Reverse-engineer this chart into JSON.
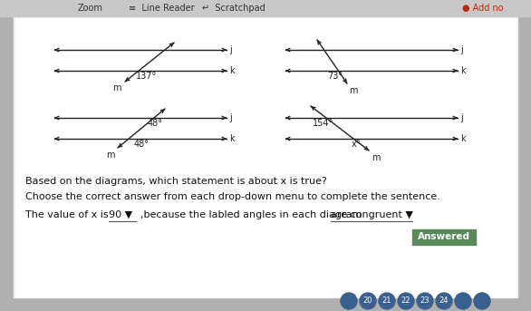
{
  "bg_color": "#b0b0b0",
  "toolbar_bg": "#d4d4d4",
  "content_bg": "#ffffff",
  "outer_bg": "#c0c0c0",
  "line_color": "#222222",
  "label_color": "#111111",
  "question": "Based on the diagrams, which statement is about x is true?",
  "instruction": "Choose the correct answer from each drop-down menu to complete the sentence.",
  "answer_pre": "The value of x is",
  "answer_dropdown1": "90 ▼",
  "answer_mid": ",because the labled angles in each diagram",
  "answer_dropdown2": "are congruent ▼",
  "answered_btn": "Answered",
  "d1t_angle": "137°",
  "d1b_angle1": "48°",
  "d1b_angle2": "48°",
  "d2t_angle": "73°",
  "d2b_angle1": "154°",
  "d2b_angle2": "x°",
  "label_j": "j",
  "label_k": "k",
  "label_m": "m"
}
